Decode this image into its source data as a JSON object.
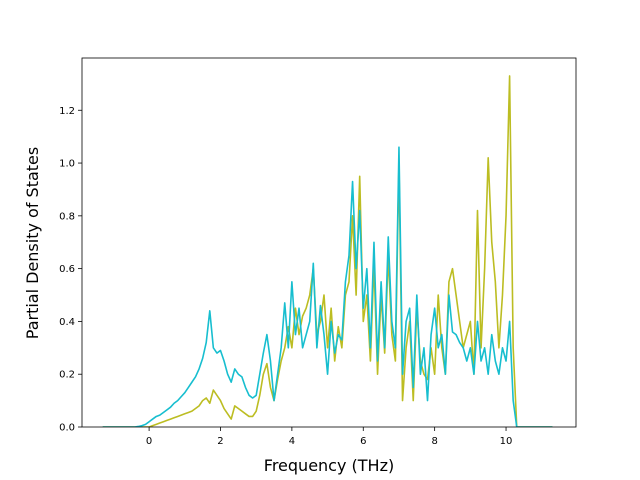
{
  "chart_data": {
    "type": "line",
    "xlabel": "Frequency (THz)",
    "ylabel": "Partial Density of States",
    "x": [
      -1.3,
      -1.2,
      -1.1,
      -1.0,
      -0.9,
      -0.8,
      -0.7,
      -0.6,
      -0.5,
      -0.4,
      -0.3,
      -0.2,
      -0.1,
      0.0,
      0.1,
      0.2,
      0.3,
      0.4,
      0.5,
      0.6,
      0.7,
      0.8,
      0.9,
      1.0,
      1.1,
      1.2,
      1.3,
      1.4,
      1.5,
      1.6,
      1.7,
      1.8,
      1.9,
      2.0,
      2.1,
      2.2,
      2.3,
      2.4,
      2.5,
      2.6,
      2.7,
      2.8,
      2.9,
      3.0,
      3.1,
      3.2,
      3.3,
      3.4,
      3.5,
      3.6,
      3.7,
      3.8,
      3.9,
      4.0,
      4.1,
      4.2,
      4.3,
      4.4,
      4.5,
      4.6,
      4.7,
      4.8,
      4.9,
      5.0,
      5.1,
      5.2,
      5.3,
      5.4,
      5.5,
      5.6,
      5.7,
      5.8,
      5.9,
      6.0,
      6.1,
      6.2,
      6.3,
      6.4,
      6.5,
      6.6,
      6.7,
      6.8,
      6.9,
      7.0,
      7.1,
      7.2,
      7.3,
      7.4,
      7.5,
      7.6,
      7.7,
      7.8,
      7.9,
      8.0,
      8.1,
      8.2,
      8.3,
      8.4,
      8.5,
      8.6,
      8.7,
      8.8,
      8.9,
      9.0,
      9.1,
      9.2,
      9.3,
      9.4,
      9.5,
      9.6,
      9.7,
      9.8,
      9.9,
      10.0,
      10.1,
      10.2,
      10.3,
      10.4,
      10.5,
      10.6,
      10.7,
      10.8,
      10.9,
      11.0,
      11.1,
      11.2,
      11.3
    ],
    "series": [
      {
        "color": "#bcbd22",
        "values": [
          0,
          0,
          0,
          0,
          0,
          0,
          0,
          0,
          0,
          0,
          0,
          0,
          0,
          0,
          0.005,
          0.01,
          0.015,
          0.02,
          0.025,
          0.03,
          0.035,
          0.04,
          0.045,
          0.05,
          0.055,
          0.06,
          0.07,
          0.08,
          0.1,
          0.11,
          0.09,
          0.14,
          0.12,
          0.1,
          0.07,
          0.05,
          0.03,
          0.08,
          0.07,
          0.06,
          0.05,
          0.04,
          0.04,
          0.06,
          0.12,
          0.2,
          0.24,
          0.15,
          0.1,
          0.18,
          0.25,
          0.3,
          0.38,
          0.3,
          0.45,
          0.35,
          0.42,
          0.45,
          0.5,
          0.6,
          0.35,
          0.4,
          0.5,
          0.3,
          0.45,
          0.25,
          0.38,
          0.3,
          0.5,
          0.55,
          0.8,
          0.5,
          0.95,
          0.4,
          0.5,
          0.25,
          0.62,
          0.2,
          0.5,
          0.28,
          0.65,
          0.35,
          0.25,
          1.0,
          0.1,
          0.3,
          0.4,
          0.1,
          0.45,
          0.25,
          0.2,
          0.18,
          0.3,
          0.2,
          0.5,
          0.3,
          0.2,
          0.55,
          0.6,
          0.5,
          0.4,
          0.3,
          0.35,
          0.4,
          0.2,
          0.82,
          0.3,
          0.6,
          1.02,
          0.7,
          0.55,
          0.3,
          0.5,
          0.8,
          1.33,
          0.3,
          0,
          0,
          0,
          0,
          0,
          0,
          0,
          0,
          0,
          0,
          0
        ]
      },
      {
        "color": "#17becf",
        "values": [
          0,
          0,
          0,
          0,
          0,
          0,
          0,
          0,
          0,
          0,
          0.002,
          0.005,
          0.01,
          0.02,
          0.03,
          0.04,
          0.045,
          0.055,
          0.065,
          0.075,
          0.09,
          0.1,
          0.115,
          0.13,
          0.15,
          0.17,
          0.19,
          0.22,
          0.26,
          0.32,
          0.44,
          0.3,
          0.28,
          0.29,
          0.25,
          0.2,
          0.17,
          0.22,
          0.2,
          0.19,
          0.15,
          0.12,
          0.11,
          0.12,
          0.2,
          0.28,
          0.35,
          0.25,
          0.1,
          0.2,
          0.3,
          0.47,
          0.3,
          0.55,
          0.35,
          0.45,
          0.3,
          0.35,
          0.4,
          0.62,
          0.3,
          0.46,
          0.35,
          0.2,
          0.4,
          0.28,
          0.35,
          0.33,
          0.55,
          0.65,
          0.93,
          0.6,
          0.82,
          0.45,
          0.6,
          0.3,
          0.7,
          0.25,
          0.55,
          0.3,
          0.72,
          0.4,
          0.3,
          1.06,
          0.2,
          0.4,
          0.45,
          0.15,
          0.5,
          0.2,
          0.3,
          0.1,
          0.35,
          0.45,
          0.3,
          0.35,
          0.2,
          0.5,
          0.36,
          0.35,
          0.32,
          0.3,
          0.25,
          0.3,
          0.2,
          0.4,
          0.25,
          0.3,
          0.2,
          0.35,
          0.25,
          0.2,
          0.3,
          0.25,
          0.4,
          0.1,
          0,
          0,
          0,
          0,
          0,
          0,
          0,
          0,
          0,
          0,
          0
        ]
      }
    ],
    "xlim": [
      -1.88,
      11.96
    ],
    "xticks": [
      0,
      2,
      4,
      6,
      8,
      10
    ],
    "ylim": [
      0,
      1.398
    ],
    "yticks": [
      {
        "value": 0,
        "label": "0.0"
      },
      0.2,
      0.4,
      0.6,
      0.8,
      {
        "value": 1,
        "label": "1.0"
      },
      1.2
    ],
    "grid": false
  }
}
